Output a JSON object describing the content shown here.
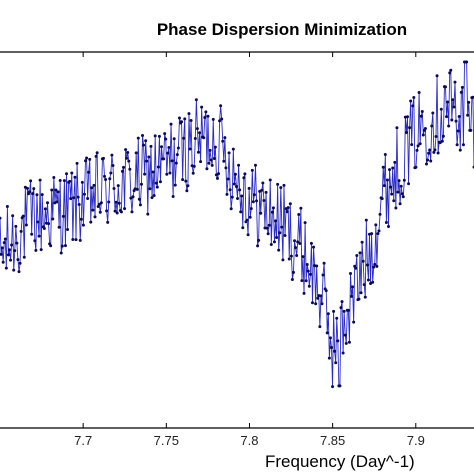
{
  "chart_data": {
    "type": "line",
    "title": "Phase Dispersion Minimization",
    "xlabel": "Frequency (Day^-1)",
    "ylabel": "",
    "x_ticks": [
      7.7,
      7.75,
      7.8,
      7.85,
      7.9
    ],
    "x_tick_labels": [
      "7.7",
      "7.75",
      "7.8",
      "7.85",
      "7.9"
    ],
    "xlim": [
      7.65,
      7.935
    ],
    "ylim": [
      0,
      1
    ],
    "grid": false,
    "line_color": "#2a2ac8",
    "marker_color": "#0a0a55",
    "series": [
      {
        "x_range": [
          7.65,
          7.935
        ],
        "n_points": 450,
        "trend_knots": [
          [
            7.65,
            0.45
          ],
          [
            7.67,
            0.56
          ],
          [
            7.69,
            0.58
          ],
          [
            7.71,
            0.63
          ],
          [
            7.73,
            0.66
          ],
          [
            7.75,
            0.71
          ],
          [
            7.77,
            0.78
          ],
          [
            7.78,
            0.79
          ],
          [
            7.79,
            0.69
          ],
          [
            7.8,
            0.61
          ],
          [
            7.82,
            0.54
          ],
          [
            7.835,
            0.44
          ],
          [
            7.845,
            0.31
          ],
          [
            7.85,
            0.19
          ],
          [
            7.86,
            0.3
          ],
          [
            7.875,
            0.5
          ],
          [
            7.88,
            0.62
          ],
          [
            7.9,
            0.8
          ],
          [
            7.92,
            0.88
          ],
          [
            7.935,
            0.82
          ]
        ],
        "scatter_amplitude": 0.12,
        "mean_y": 0.59,
        "min_y": 0.08,
        "min_x": 7.854,
        "max_y": 1.0,
        "max_x": 7.93
      }
    ]
  }
}
